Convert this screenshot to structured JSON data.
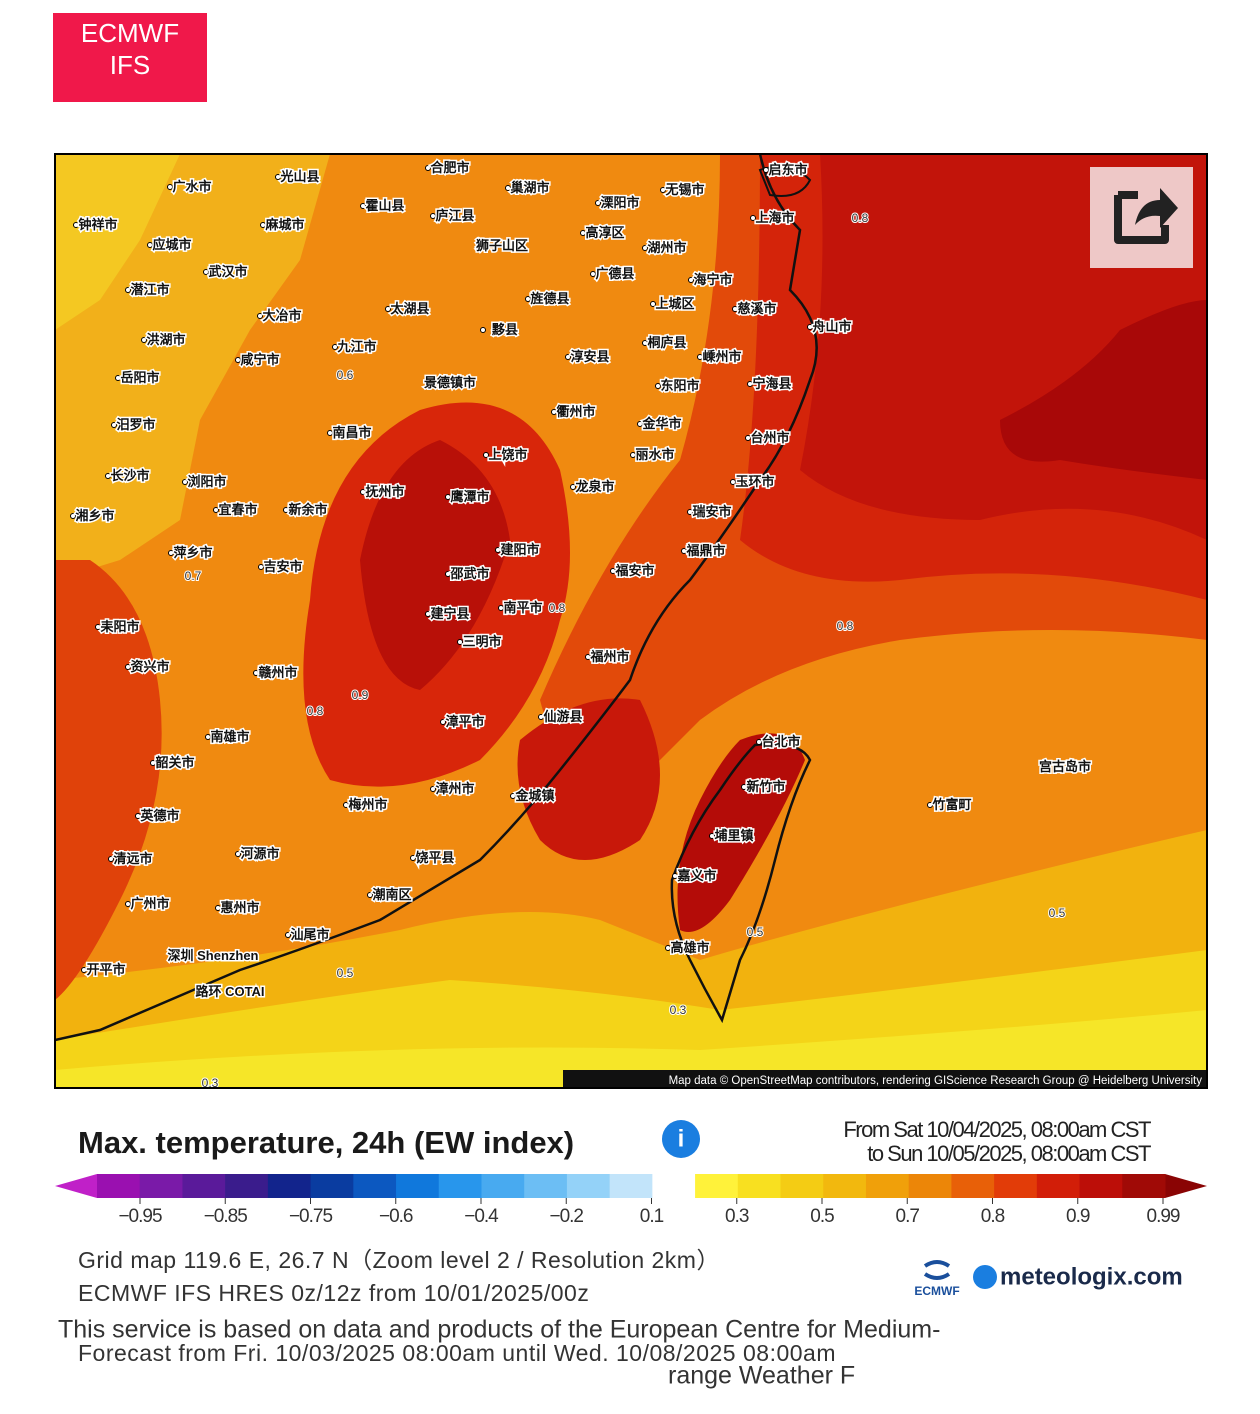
{
  "badge": {
    "line1": "ECMWF",
    "line2": "IFS"
  },
  "map": {
    "cities": [
      "光山县",
      "合肥市",
      "广水市",
      "巢湖市",
      "无锡市",
      "启东市",
      "霍山县",
      "麻城市",
      "庐江县",
      "溧阳市",
      "钟祥市",
      "应城市",
      "狮子山区",
      "高淳区",
      "湖州市",
      "上海市",
      "武汉市",
      "广德县",
      "潜江市",
      "太湖县",
      "旌德县",
      "海宁市",
      "大冶市",
      "上城区",
      "慈溪市",
      "洪湖市",
      "黟县",
      "桐庐县",
      "舟山市",
      "九江市",
      "咸宁市",
      "淳安县",
      "嵊州市",
      "岳阳市",
      "景德镇市",
      "东阳市",
      "宁海县",
      "汨罗市",
      "衢州市",
      "金华市",
      "台州市",
      "南昌市",
      "丽水市",
      "上饶市",
      "长沙市",
      "浏阳市",
      "抚州市",
      "鹰潭市",
      "龙泉市",
      "玉环市",
      "湘乡市",
      "宜春市",
      "新余市",
      "瑞安市",
      "建阳市",
      "萍乡市",
      "福鼎市",
      "吉安市",
      "邵武市",
      "福安市",
      "南平市",
      "建宁县",
      "耒阳市",
      "三明市",
      "福州市",
      "资兴市",
      "赣州市",
      "仙游县",
      "漳平市",
      "南雄市",
      "韶关市",
      "台北市",
      "新竹市",
      "梅州市",
      "漳州市",
      "金城镇",
      "英德市",
      "埔里镇",
      "河源市",
      "清远市",
      "饶平县",
      "嘉义市",
      "潮南区",
      "广州市",
      "惠州市",
      "高雄市",
      "汕尾市",
      "深圳 Shenzhen",
      "开平市",
      "宫古岛市",
      "竹富町",
      "路环 COTAI"
    ],
    "contour_labels": [
      "0.8",
      "0.6",
      "0.7",
      "0.8",
      "0.8",
      "0.9",
      "0.8",
      "0.5",
      "0.5",
      "0.5",
      "0.3",
      "0.3"
    ],
    "attribution": "Map data © OpenStreetMap contributors, rendering GIScience Research Group @ Heidelberg University"
  },
  "legend": {
    "title": "Max. temperature, 24h (EW index)",
    "info": "i",
    "from": "From Sat 10/04/2025, 08:00am CST",
    "to": "to Sun 10/05/2025, 08:00am CST",
    "colors": [
      "#9a10b0",
      "#7a1aa8",
      "#5a1a9a",
      "#3a1c8c",
      "#12248c",
      "#0a3ca0",
      "#0c58c0",
      "#1078dc",
      "#2896ec",
      "#48aaf0",
      "#6cbef4",
      "#94d2f8",
      "#c2e4fa",
      "#ffffff",
      "#fff23a",
      "#f8e020",
      "#f4cc14",
      "#f2b80e",
      "#f0a00a",
      "#ec8608",
      "#e86008",
      "#e23c08",
      "#d21e08",
      "#bc0e08",
      "#a00a06"
    ],
    "end_low": "#c020c8",
    "end_high": "#8a0404",
    "ticks": [
      "−0.95",
      "−0.85",
      "−0.75",
      "−0.6",
      "−0.4",
      "−0.2",
      "0.1",
      "0.3",
      "0.5",
      "0.7",
      "0.8",
      "0.9",
      "0.99"
    ]
  },
  "info": {
    "grid": "Grid map 119.6 E, 26.7 N（Zoom level 2 / Resolution 2km）",
    "model": "ECMWF IFS HRES 0z/12z from 10/01/2025/00z",
    "service": "This service is based on data and products of the European Centre for Medium-",
    "forecast": "Forecast from Fri. 10/03/2025 08:00am until Wed. 10/08/2025 08:00am",
    "service2": "range Weather F",
    "logo_small": "ECMWF",
    "logo": "meteologix.com"
  }
}
